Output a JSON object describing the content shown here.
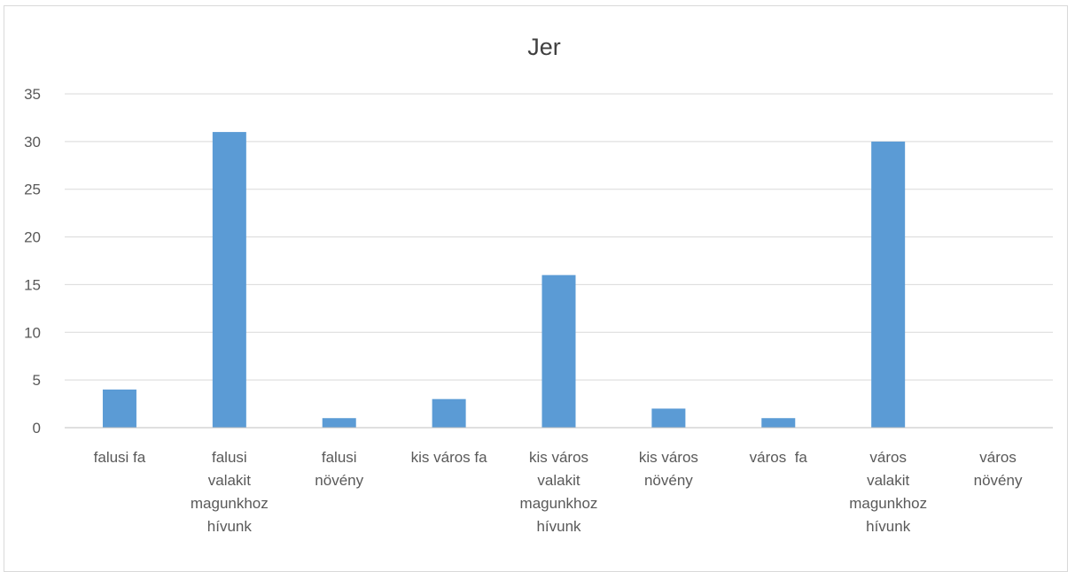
{
  "chart_data": {
    "type": "bar",
    "title": "Jer",
    "xlabel": "",
    "ylabel": "",
    "ylim": [
      0,
      35
    ],
    "yticks": [
      0,
      5,
      10,
      15,
      20,
      25,
      30,
      35
    ],
    "grid": true,
    "legend": "none",
    "categories": [
      [
        "falusi fa"
      ],
      [
        "falusi",
        "valakit",
        "magunkhoz",
        "hívunk"
      ],
      [
        "falusi",
        "növény"
      ],
      [
        "kis város fa"
      ],
      [
        "kis város",
        "valakit",
        "magunkhoz",
        "hívunk"
      ],
      [
        "kis város",
        "növény"
      ],
      [
        "város  fa"
      ],
      [
        "város",
        "valakit",
        "magunkhoz",
        "hívunk"
      ],
      [
        "város",
        "növény"
      ]
    ],
    "values": [
      4,
      31,
      1,
      3,
      16,
      2,
      1,
      30,
      0
    ],
    "bar_color": "#5b9bd5",
    "grid_color": "#d9d9d9",
    "axis_color": "#bfbfbf"
  }
}
